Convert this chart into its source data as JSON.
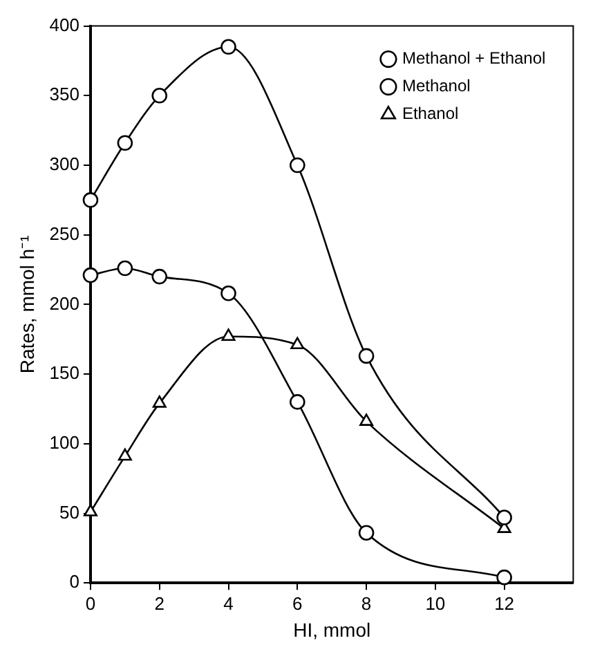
{
  "chart_data": {
    "type": "line",
    "xlabel": "HI, mmol",
    "ylabel": "Rates, mmol h⁻¹",
    "x": [
      0,
      1,
      2,
      4,
      6,
      8,
      12
    ],
    "series": [
      {
        "name": "Methanol + Ethanol",
        "color": "#000000",
        "marker": "circle",
        "values": [
          275,
          316,
          350,
          385,
          300,
          163,
          47
        ]
      },
      {
        "name": "Methanol",
        "color": "#000000",
        "marker": "circle",
        "values": [
          221,
          226,
          220,
          208,
          130,
          36,
          4
        ]
      },
      {
        "name": "Ethanol",
        "color": "#000000",
        "marker": "triangle",
        "values": [
          51,
          91,
          129,
          177,
          171,
          116,
          39
        ]
      }
    ],
    "xlim": [
      0,
      14
    ],
    "xticks": [
      0,
      2,
      4,
      6,
      8,
      10,
      12
    ],
    "ylim": [
      0,
      400
    ],
    "yticks": [
      0,
      50,
      100,
      150,
      200,
      250,
      300,
      350,
      400
    ],
    "grid": false,
    "legend": "top right",
    "line_style": "solid"
  }
}
